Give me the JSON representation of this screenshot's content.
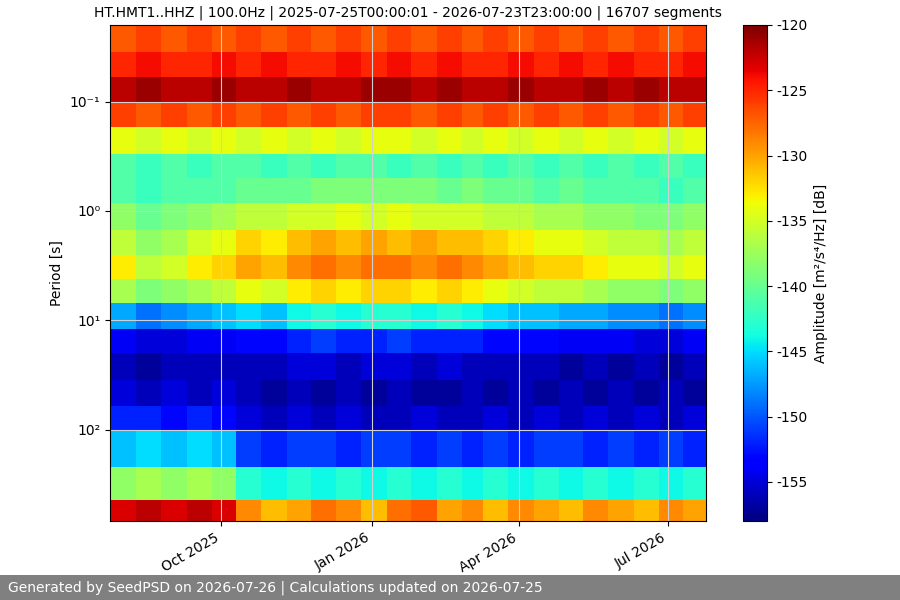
{
  "chart_data": {
    "type": "heatmap",
    "title": "HT.HMT1..HHZ | 100.0Hz | 2025-07-25T00:00:01 - 2026-07-23T23:00:00 | 16707 segments",
    "ylabel": "Period [s]",
    "colorbar_label": "Amplitude [m²/s⁴/Hz] [dB]",
    "footer": "Generated by SeedPSD on 2026-07-26 | Calculations updated on 2026-07-25",
    "log": "y",
    "grid": true,
    "xlim": [
      "2025-07-25",
      "2026-07-24"
    ],
    "ylim": [
      680,
      0.02
    ],
    "xticks": [
      {
        "value": "2025-10-01",
        "label": "Oct 2025"
      },
      {
        "value": "2026-01-01",
        "label": "Jan 2026"
      },
      {
        "value": "2026-04-01",
        "label": "Apr 2026"
      },
      {
        "value": "2026-07-01",
        "label": "Jul 2026"
      }
    ],
    "yticks": [
      {
        "value": 0.1,
        "label": "10⁻¹"
      },
      {
        "value": 1,
        "label": "10⁰"
      },
      {
        "value": 10,
        "label": "10¹"
      },
      {
        "value": 100,
        "label": "10²"
      }
    ],
    "clim": [
      -158,
      -120
    ],
    "cticks": [
      -155,
      -150,
      -145,
      -140,
      -135,
      -130,
      -125,
      -120
    ],
    "x_edges": [
      "2025-07-25",
      "2025-08-10",
      "2025-08-25",
      "2025-09-10",
      "2025-09-25",
      "2025-10-10",
      "2025-10-25",
      "2025-11-10",
      "2025-11-25",
      "2025-12-10",
      "2025-12-25",
      "2026-01-10",
      "2026-01-25",
      "2026-02-10",
      "2026-02-25",
      "2026-03-10",
      "2026-03-25",
      "2026-04-10",
      "2026-04-25",
      "2026-05-10",
      "2026-05-25",
      "2026-06-10",
      "2026-06-25",
      "2026-07-10",
      "2026-07-24"
    ],
    "y_edges": [
      0.02,
      0.035,
      0.06,
      0.1,
      0.17,
      0.3,
      0.5,
      0.85,
      1.5,
      2.5,
      4.2,
      7,
      12,
      20,
      35,
      60,
      100,
      220,
      440,
      680
    ],
    "cells": [
      [
        -127,
        -126,
        -127,
        -126,
        -127,
        -126,
        -127,
        -126,
        -127,
        -126,
        -127,
        -126,
        -127,
        -126,
        -127,
        -126,
        -127,
        -126,
        -127,
        -126,
        -127,
        -126,
        -127,
        -126
      ],
      [
        -125,
        -124,
        -125,
        -125,
        -124,
        -125,
        -124,
        -125,
        -125,
        -124,
        -125,
        -124,
        -125,
        -124,
        -125,
        -125,
        -124,
        -125,
        -124,
        -125,
        -124,
        -125,
        -125,
        -124
      ],
      [
        -122,
        -121,
        -122,
        -122,
        -121,
        -122,
        -122,
        -121,
        -122,
        -122,
        -121,
        -121,
        -122,
        -121,
        -122,
        -122,
        -121,
        -122,
        -122,
        -121,
        -122,
        -121,
        -122,
        -122
      ],
      [
        -126,
        -127,
        -126,
        -127,
        -126,
        -127,
        -126,
        -127,
        -126,
        -127,
        -126,
        -126,
        -127,
        -126,
        -127,
        -126,
        -127,
        -126,
        -127,
        -126,
        -127,
        -126,
        -127,
        -126
      ],
      [
        -134,
        -135,
        -134,
        -135,
        -134,
        -135,
        -134,
        -135,
        -134,
        -135,
        -134,
        -134,
        -135,
        -134,
        -135,
        -134,
        -135,
        -134,
        -135,
        -134,
        -135,
        -134,
        -135,
        -134
      ],
      [
        -141,
        -142,
        -141,
        -142,
        -141,
        -141,
        -142,
        -141,
        -142,
        -141,
        -141,
        -142,
        -141,
        -142,
        -141,
        -142,
        -141,
        -142,
        -141,
        -142,
        -141,
        -142,
        -141,
        -142
      ],
      [
        -141,
        -142,
        -141,
        -141,
        -141,
        -140,
        -140,
        -140,
        -139,
        -139,
        -139,
        -139,
        -139,
        -140,
        -139,
        -140,
        -140,
        -141,
        -140,
        -141,
        -141,
        -141,
        -142,
        -141
      ],
      [
        -138,
        -140,
        -139,
        -138,
        -137,
        -136,
        -136,
        -135,
        -135,
        -134,
        -135,
        -134,
        -135,
        -135,
        -135,
        -136,
        -136,
        -137,
        -137,
        -138,
        -138,
        -139,
        -139,
        -138
      ],
      [
        -136,
        -138,
        -137,
        -135,
        -134,
        -132,
        -133,
        -131,
        -130,
        -131,
        -130,
        -131,
        -130,
        -131,
        -131,
        -132,
        -133,
        -134,
        -134,
        -135,
        -136,
        -136,
        -137,
        -136
      ],
      [
        -133,
        -136,
        -135,
        -133,
        -132,
        -130,
        -131,
        -129,
        -128,
        -129,
        -128,
        -128,
        -129,
        -128,
        -129,
        -130,
        -131,
        -132,
        -132,
        -133,
        -134,
        -134,
        -135,
        -134
      ],
      [
        -137,
        -139,
        -138,
        -137,
        -136,
        -134,
        -135,
        -133,
        -132,
        -133,
        -132,
        -132,
        -133,
        -132,
        -133,
        -134,
        -135,
        -136,
        -136,
        -137,
        -138,
        -138,
        -139,
        -138
      ],
      [
        -147,
        -149,
        -148,
        -147,
        -146,
        -145,
        -146,
        -144,
        -143,
        -144,
        -143,
        -143,
        -144,
        -143,
        -144,
        -145,
        -146,
        -146,
        -147,
        -147,
        -148,
        -148,
        -149,
        -148
      ],
      [
        -154,
        -155,
        -155,
        -154,
        -154,
        -153,
        -153,
        -152,
        -151,
        -152,
        -152,
        -151,
        -152,
        -152,
        -152,
        -153,
        -153,
        -153,
        -154,
        -154,
        -154,
        -155,
        -155,
        -154
      ],
      [
        -156,
        -157,
        -156,
        -156,
        -156,
        -156,
        -156,
        -155,
        -155,
        -156,
        -155,
        -155,
        -156,
        -155,
        -156,
        -156,
        -156,
        -156,
        -157,
        -156,
        -157,
        -156,
        -157,
        -156
      ],
      [
        -155,
        -156,
        -155,
        -156,
        -155,
        -156,
        -157,
        -156,
        -157,
        -156,
        -157,
        -156,
        -157,
        -157,
        -156,
        -157,
        -156,
        -157,
        -156,
        -157,
        -156,
        -157,
        -156,
        -157
      ],
      [
        -152,
        -152,
        -153,
        -152,
        -153,
        -155,
        -156,
        -155,
        -156,
        -155,
        -156,
        -156,
        -155,
        -156,
        -156,
        -155,
        -156,
        -155,
        -156,
        -155,
        -156,
        -155,
        -156,
        -155
      ],
      [
        -146,
        -145,
        -146,
        -145,
        -146,
        -151,
        -152,
        -151,
        -151,
        -152,
        -151,
        -151,
        -152,
        -151,
        -152,
        -151,
        -152,
        -151,
        -151,
        -152,
        -151,
        -152,
        -151,
        -152
      ],
      [
        -138,
        -137,
        -138,
        -137,
        -138,
        -143,
        -144,
        -143,
        -144,
        -143,
        -144,
        -143,
        -144,
        -143,
        -144,
        -143,
        -144,
        -143,
        -144,
        -143,
        -144,
        -143,
        -144,
        -143
      ],
      [
        -123,
        -122,
        -123,
        -122,
        -123,
        -129,
        -131,
        -130,
        -128,
        -129,
        -131,
        -128,
        -127,
        -130,
        -129,
        -131,
        -129,
        -130,
        -131,
        -129,
        -130,
        -131,
        -129,
        -130
      ]
    ]
  }
}
